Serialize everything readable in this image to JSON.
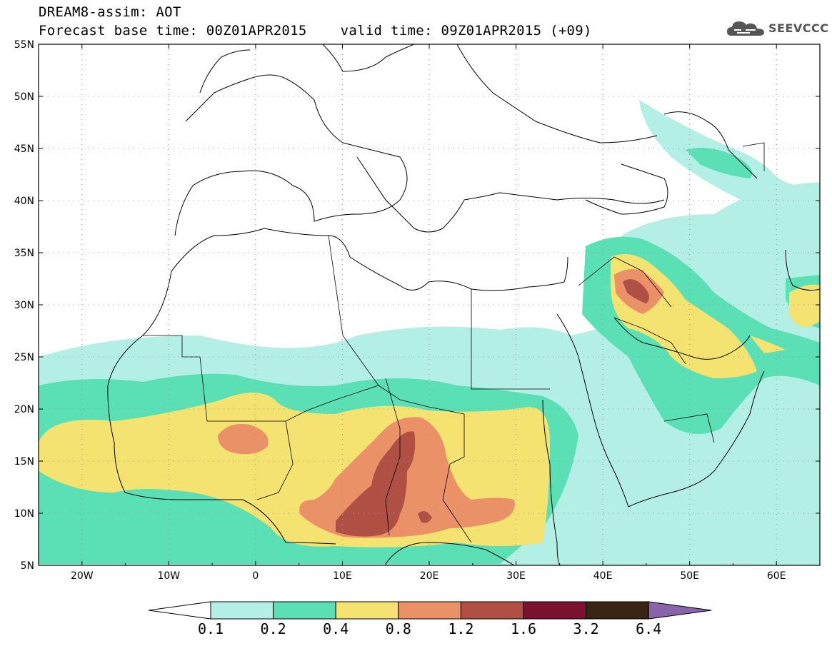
{
  "title_line1": "DREAM8-assim: AOT",
  "title_line2": "Forecast base time: 00Z01APR2015    valid time: 09Z01APR2015 (+09)",
  "logo": {
    "text": "SEEVCCC",
    "icon": "cloud-icon"
  },
  "map": {
    "projection": "lat-lon",
    "lon_range": [
      -25,
      65
    ],
    "lat_range": [
      5,
      55
    ],
    "lat_labels": [
      "5N",
      "10N",
      "15N",
      "20N",
      "25N",
      "30N",
      "35N",
      "40N",
      "45N",
      "50N",
      "55N"
    ],
    "lon_labels": [
      "20W",
      "10W",
      "0",
      "10E",
      "20E",
      "30E",
      "40E",
      "50E",
      "60E"
    ],
    "gridlines": "dotted",
    "variable": "AOT",
    "model": "DREAM8-assim"
  },
  "colorbar": {
    "levels": [
      "0.1",
      "0.2",
      "0.4",
      "0.8",
      "1.2",
      "1.6",
      "3.2",
      "6.4"
    ],
    "colors": [
      "#b4efe6",
      "#5be0b5",
      "#f4e271",
      "#ea9168",
      "#b04f44",
      "#7a1230",
      "#3a2414",
      "#8a64aa"
    ]
  }
}
